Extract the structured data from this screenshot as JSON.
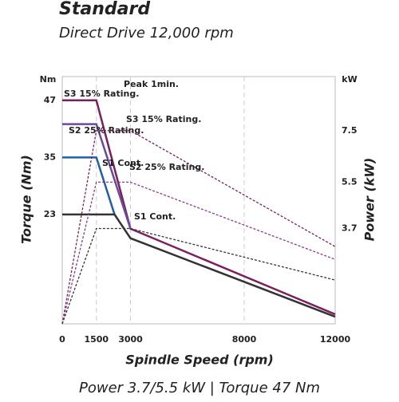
{
  "chart_data": {
    "type": "line",
    "title": "Standard",
    "subtitle": "Direct Drive 12,000 rpm",
    "footer": "Power 3.7/5.5 kW | Torque 47 Nm",
    "x_label": "Spindle Speed (rpm)",
    "y_label": "Torque (Nm)",
    "y2_label": "Power (kW)",
    "y_unit": "Nm",
    "y2_unit": "kW",
    "annotation": "Peak 1min.",
    "xlim": [
      0,
      12000
    ],
    "xticks": [
      0,
      1500,
      3000,
      8000,
      12000
    ],
    "ylim": [
      0,
      52
    ],
    "yticks": [
      23,
      35,
      47
    ],
    "y2lim": [
      0,
      9.6
    ],
    "y2ticks": [
      3.7,
      5.5,
      7.5
    ],
    "grid": true,
    "series": [
      {
        "name": "S3 15% Rating.",
        "color": "#7b1f5e",
        "x": [
          0,
          1500,
          3000,
          12000
        ],
        "values": [
          47,
          47,
          20,
          2
        ]
      },
      {
        "name": "S2 25% Rating.",
        "color": "#6a4a9e",
        "x": [
          0,
          1500,
          3000
        ],
        "values": [
          42,
          42,
          20
        ]
      },
      {
        "name": "S1 Cont.",
        "color": "#1f5fa8",
        "x": [
          0,
          1500,
          2300
        ],
        "values": [
          35,
          35,
          23
        ]
      },
      {
        "color": "#333333",
        "x": [
          0,
          2300,
          3000,
          12000
        ],
        "values": [
          23,
          23,
          18,
          1.5
        ]
      },
      {
        "name": "S3 15% Rating.",
        "color": "#7b1f5e",
        "axis": "y2",
        "x": [
          0,
          1500,
          3000,
          12000
        ],
        "values": [
          0,
          7.5,
          7.5,
          3.0
        ]
      },
      {
        "name": "S2 25% Rating.",
        "color": "#8a3a8a",
        "axis": "y2",
        "x": [
          0,
          1500,
          3000,
          12000
        ],
        "values": [
          0,
          5.5,
          5.5,
          2.5
        ]
      },
      {
        "name": "S1 Cont.",
        "color": "#333333",
        "axis": "y2",
        "x": [
          0,
          1500,
          3000,
          12000
        ],
        "values": [
          0,
          3.7,
          3.7,
          1.7
        ]
      }
    ]
  }
}
